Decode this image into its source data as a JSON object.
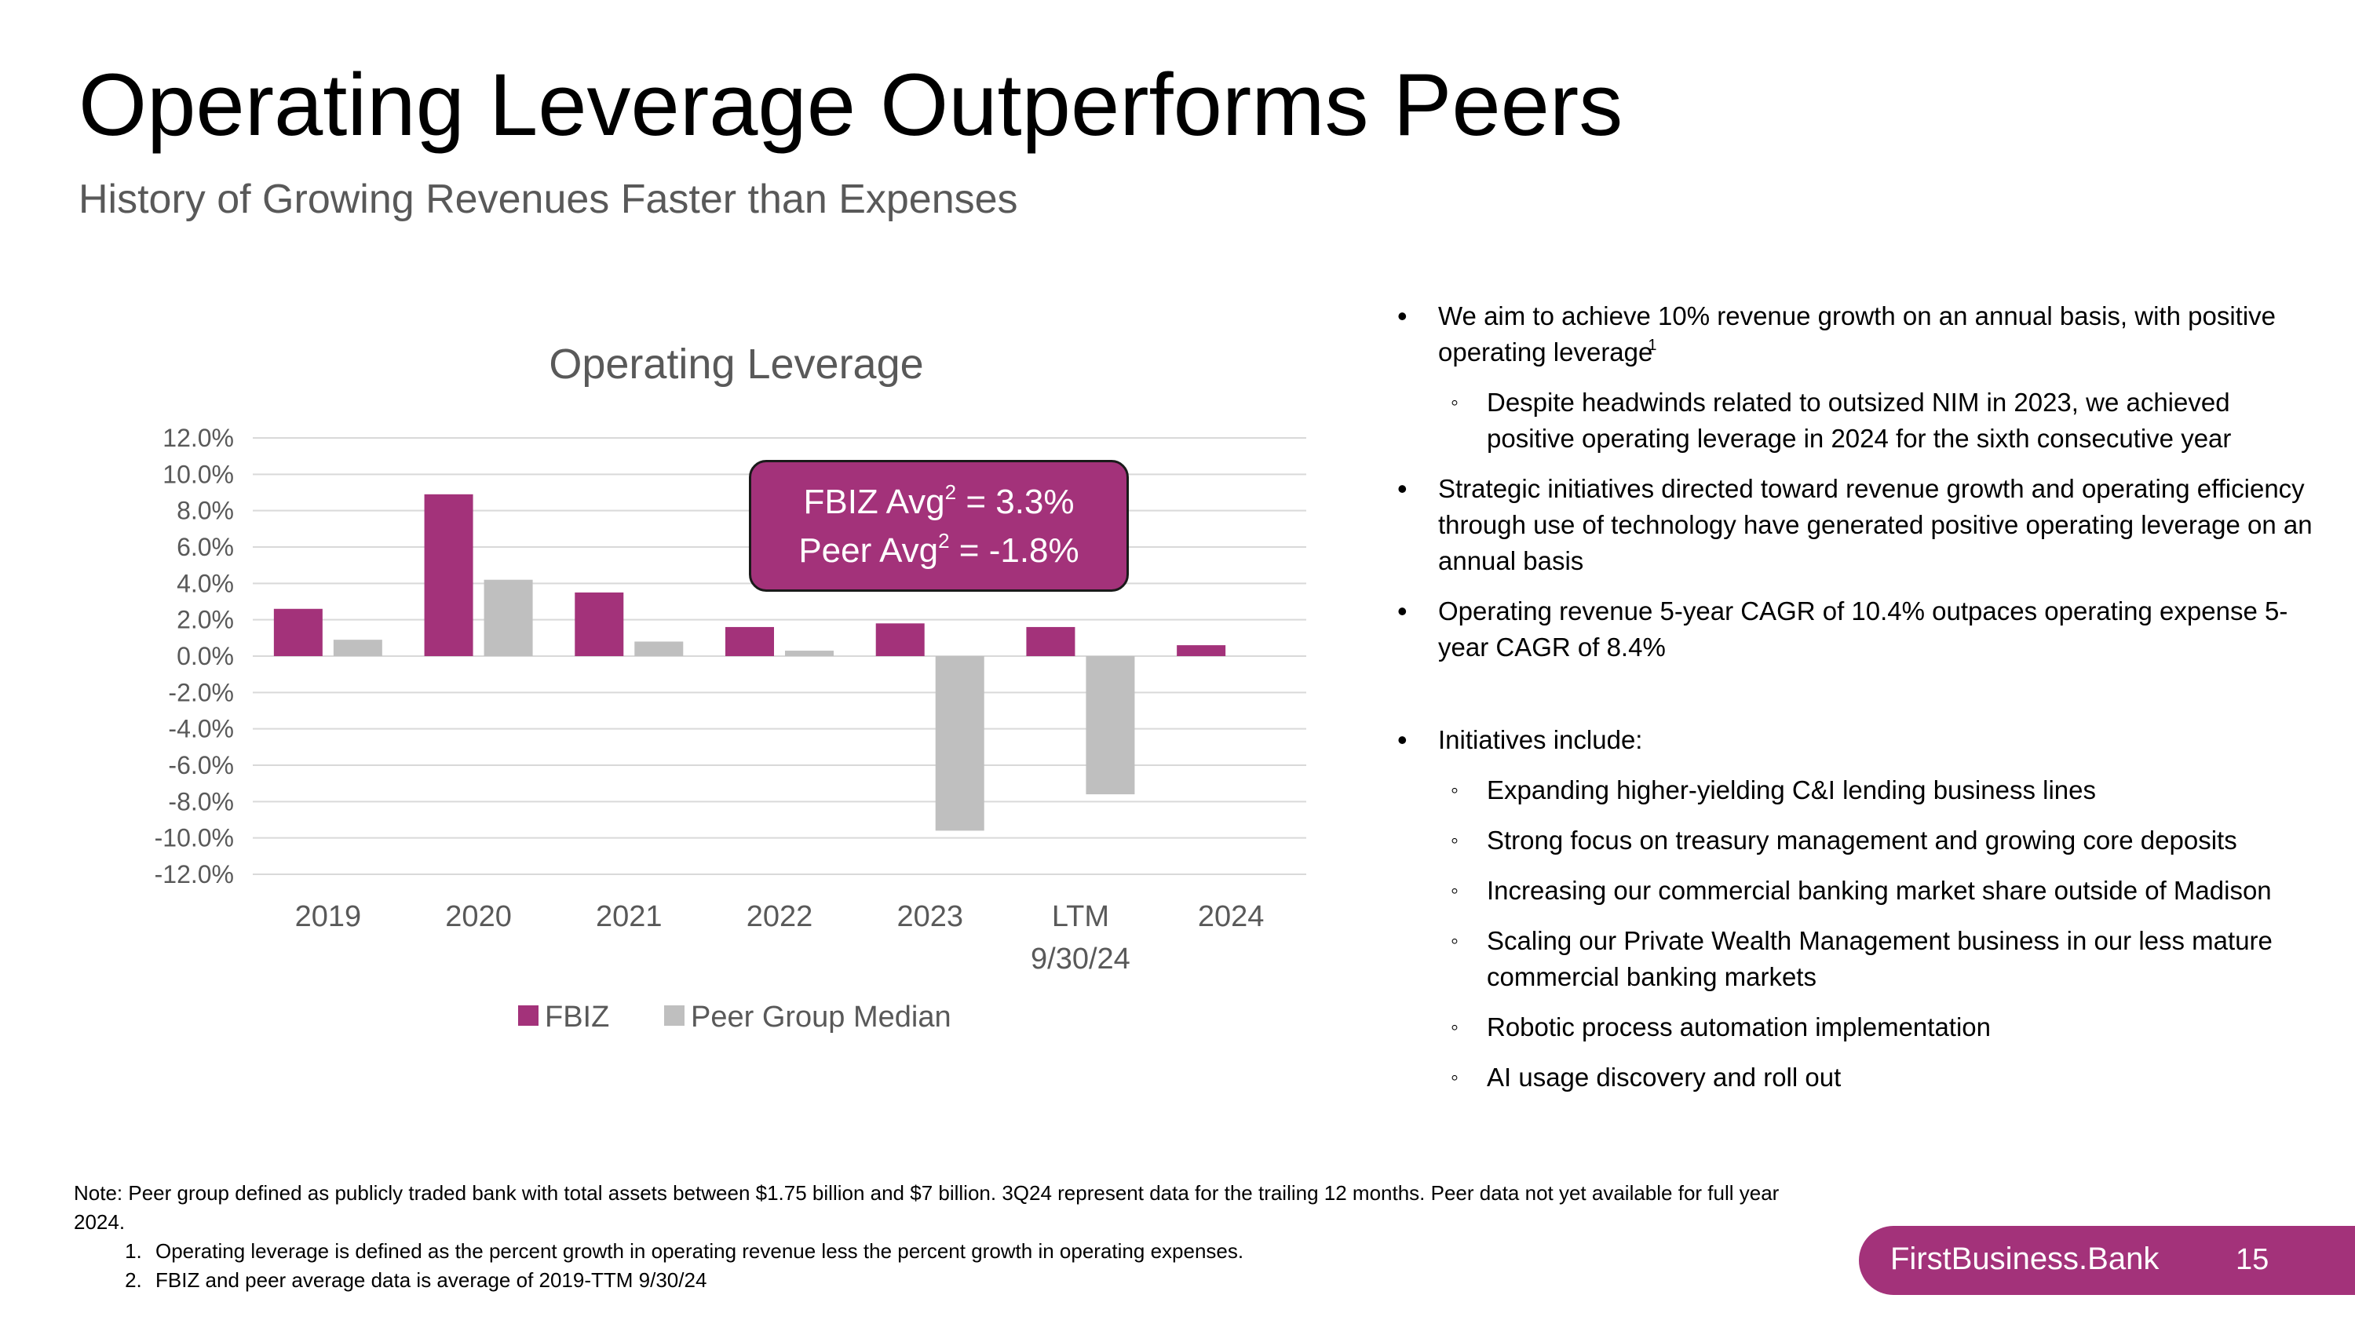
{
  "slide": {
    "title": "Operating Leverage Outperforms Peers",
    "subtitle": "History of Growing Revenues Faster than Expenses"
  },
  "callout": {
    "line1_prefix": "FBIZ Avg",
    "line1_sup": "2",
    "line1_suffix": " = 3.3%",
    "line2_prefix": "Peer Avg",
    "line2_sup": "2",
    "line2_suffix": " = -1.8%"
  },
  "colors": {
    "fbiz": "#A3327A",
    "peer": "#BFBFBF",
    "grid": "#D9D9D9",
    "axis_text": "#595959"
  },
  "chart_data": {
    "type": "bar",
    "title": "Operating Leverage",
    "categories": [
      [
        "2019"
      ],
      [
        "2020"
      ],
      [
        "2021"
      ],
      [
        "2022"
      ],
      [
        "2023"
      ],
      [
        "LTM",
        "9/30/24"
      ],
      [
        "2024"
      ]
    ],
    "series": [
      {
        "name": "FBIZ",
        "values": [
          2.6,
          8.9,
          3.5,
          1.6,
          1.8,
          1.6,
          0.6
        ]
      },
      {
        "name": "Peer Group Median",
        "values": [
          0.9,
          4.2,
          0.8,
          0.3,
          -9.6,
          -7.6,
          null
        ]
      }
    ],
    "yticks": [
      "12.0%",
      "10.0%",
      "8.0%",
      "6.0%",
      "4.0%",
      "2.0%",
      "0.0%",
      "-2.0%",
      "-4.0%",
      "-6.0%",
      "-8.0%",
      "-10.0%",
      "-12.0%"
    ],
    "ylim": [
      -12,
      12
    ],
    "grid": true,
    "legend_position": "bottom"
  },
  "bullets": {
    "b1_text": "We aim to achieve 10% revenue growth on an annual basis, with positive operating leverage",
    "b1_sup": "1",
    "b1_sub": "Despite headwinds related to outsized NIM in 2023, we achieved positive operating leverage in 2024 for the sixth consecutive year",
    "b2": "Strategic initiatives directed toward revenue growth and operating efficiency through use of technology have generated positive operating leverage on an annual basis",
    "b3": "Operating revenue 5-year CAGR of 10.4% outpaces operating expense 5-year CAGR of 8.4%",
    "b4": "Initiatives include:",
    "b4_subs": [
      "Expanding higher-yielding C&I lending business lines",
      "Strong focus on treasury management and growing core deposits",
      "Increasing our commercial banking market share outside of Madison",
      "Scaling our Private Wealth Management business in our less mature commercial banking markets",
      "Robotic process automation implementation",
      "AI usage discovery and roll out"
    ]
  },
  "notes": {
    "note": "Note: Peer group defined as publicly traded bank with total assets between $1.75 billion and $7 billion. 3Q24 represent data for the trailing 12 months. Peer data not yet available for full year 2024.",
    "items": [
      "Operating leverage is defined as the percent growth in operating revenue less the percent growth in operating expenses.",
      "FBIZ and peer average data is average of 2019-TTM 9/30/24"
    ]
  },
  "footer": {
    "brand": "FirstBusiness.Bank",
    "page_number": "15"
  }
}
